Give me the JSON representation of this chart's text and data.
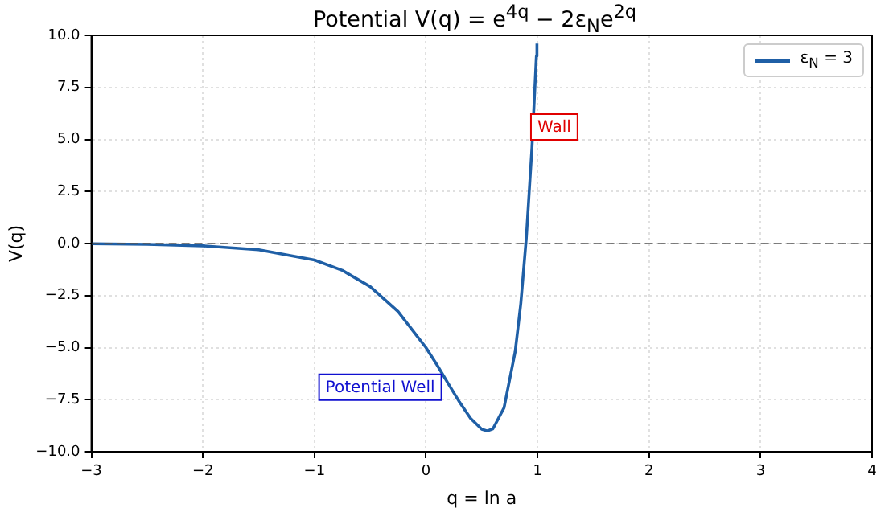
{
  "chart_data": {
    "type": "line",
    "title": "Potential V(q) = e$^{4q}$ − 2ε$_{N}$e$^{2q}$",
    "xlabel": "q = ln a",
    "ylabel": "V(q)",
    "xlim": [
      -3,
      4
    ],
    "xticks": [
      {
        "value": -3,
        "label": "−3"
      },
      {
        "value": -2,
        "label": "−2"
      },
      {
        "value": -1,
        "label": "−1"
      },
      0,
      1,
      2,
      3,
      4
    ],
    "ylim": [
      -10,
      10
    ],
    "yticks": [
      {
        "value": -10,
        "label": "−10.0"
      },
      {
        "value": -7.5,
        "label": "−7.5"
      },
      {
        "value": -5,
        "label": "−5.0"
      },
      {
        "value": -2.5,
        "label": "−2.5"
      },
      {
        "value": 0,
        "label": "0.0"
      },
      {
        "value": 2.5,
        "label": "2.5"
      },
      {
        "value": 5,
        "label": "5.0"
      },
      {
        "value": 7.5,
        "label": "7.5"
      },
      {
        "value": 10,
        "label": "10.0"
      }
    ],
    "series": [
      {
        "name": "ε$_{N}$ = 3",
        "color": "#1f5fa6",
        "x": [
          -3,
          -2.5,
          -2,
          -1.5,
          -1,
          -0.75,
          -0.5,
          -0.25,
          0,
          0.1,
          0.2,
          0.3,
          0.4,
          0.5,
          0.55,
          0.6,
          0.7,
          0.8,
          0.85,
          0.9,
          0.95,
          0.99,
          0.995
        ],
        "values": [
          -0.01,
          -0.04,
          -0.11,
          -0.3,
          -0.79,
          -1.29,
          -2.07,
          -3.27,
          -5,
          -5.84,
          -6.73,
          -7.61,
          -8.4,
          -8.92,
          -9,
          -8.9,
          -7.89,
          -5.19,
          -2.89,
          0.3,
          4.58,
          9,
          9.6
        ]
      }
    ],
    "ref_lines": [
      {
        "axis": "y",
        "value": 0,
        "color": "#555555",
        "line_style": "dashed"
      }
    ],
    "annotations": [
      {
        "text": "Wall",
        "x": 1.15,
        "y": 5.6
      },
      "Potential Well"
    ],
    "grid": true,
    "legend": "top right",
    "marker": "none",
    "line_style": "solid"
  }
}
